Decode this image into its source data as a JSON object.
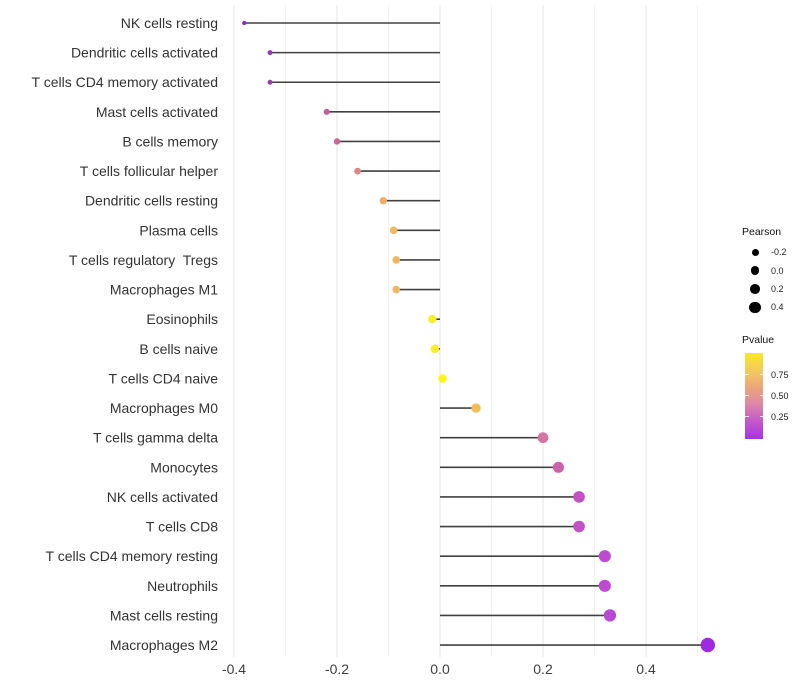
{
  "chart_data": {
    "type": "lollipop",
    "title": "",
    "xlabel": "",
    "ylabel": "",
    "x_ticks": [
      -0.4,
      -0.2,
      0.0,
      0.2,
      0.4
    ],
    "x_tick_labels": [
      "-0.4",
      "-0.2",
      "0.0",
      "0.2",
      "0.4"
    ],
    "xlim": [
      -0.45,
      0.55
    ],
    "grid_step": 0.1,
    "grid": "vertical-only",
    "background_color": "#ffffff",
    "stem_color": "#404040",
    "points": [
      {
        "label": "NK cells resting",
        "pearson": -0.38,
        "color": "#8B2BC8"
      },
      {
        "label": "Dendritic cells activated",
        "pearson": -0.33,
        "color": "#9935B2"
      },
      {
        "label": "T cells CD4 memory activated",
        "pearson": -0.33,
        "color": "#9C3AAE"
      },
      {
        "label": "Mast cells activated",
        "pearson": -0.22,
        "color": "#C45A9F"
      },
      {
        "label": "B cells memory",
        "pearson": -0.2,
        "color": "#CC6797"
      },
      {
        "label": "T cells follicular helper",
        "pearson": -0.16,
        "color": "#DD8689"
      },
      {
        "label": "Dendritic cells resting",
        "pearson": -0.11,
        "color": "#EFAC64"
      },
      {
        "label": "Plasma cells",
        "pearson": -0.09,
        "color": "#F0B85F"
      },
      {
        "label": "T cells regulatory  Tregs",
        "pearson": -0.085,
        "color": "#F0B763"
      },
      {
        "label": "Macrophages M1",
        "pearson": -0.085,
        "color": "#F0B763"
      },
      {
        "label": "Eosinophils",
        "pearson": -0.015,
        "color": "#FBEC27"
      },
      {
        "label": "B cells naive",
        "pearson": -0.01,
        "color": "#FBEC27"
      },
      {
        "label": "T cells CD4 naive",
        "pearson": 0.005,
        "color": "#FDF220"
      },
      {
        "label": "Macrophages M0",
        "pearson": 0.07,
        "color": "#F1BE55"
      },
      {
        "label": "T cells gamma delta",
        "pearson": 0.2,
        "color": "#D476A2"
      },
      {
        "label": "Monocytes",
        "pearson": 0.23,
        "color": "#CC62AE"
      },
      {
        "label": "NK cells activated",
        "pearson": 0.27,
        "color": "#C351C3"
      },
      {
        "label": "T cells CD8",
        "pearson": 0.27,
        "color": "#C251C6"
      },
      {
        "label": "T cells CD4 memory resting",
        "pearson": 0.32,
        "color": "#BC4BD1"
      },
      {
        "label": "Neutrophils",
        "pearson": 0.32,
        "color": "#BC4BD1"
      },
      {
        "label": "Mast cells resting",
        "pearson": 0.33,
        "color": "#B948D6"
      },
      {
        "label": "Macrophages M2",
        "pearson": 0.52,
        "color": "#9D2BE4"
      }
    ],
    "legend_size": {
      "title": "Pearson",
      "items": [
        {
          "label": "-0.2",
          "value": -0.2
        },
        {
          "label": "0.0",
          "value": 0.0
        },
        {
          "label": "0.2",
          "value": 0.2
        },
        {
          "label": "0.4",
          "value": 0.4
        }
      ]
    },
    "legend_color": {
      "title": "Pvalue",
      "ticks": [
        {
          "label": "0.75",
          "pos": 0.256
        },
        {
          "label": "0.50",
          "pos": 0.5
        },
        {
          "label": "0.25",
          "pos": 0.744
        }
      ],
      "gradient": [
        {
          "color": "#FAE827",
          "pos": "0%"
        },
        {
          "color": "#F3C465",
          "pos": "24%"
        },
        {
          "color": "#E9A17C",
          "pos": "42%"
        },
        {
          "color": "#DD8BA4",
          "pos": "58%"
        },
        {
          "color": "#C55BC8",
          "pos": "78%"
        },
        {
          "color": "#A832E3",
          "pos": "100%"
        }
      ]
    }
  }
}
